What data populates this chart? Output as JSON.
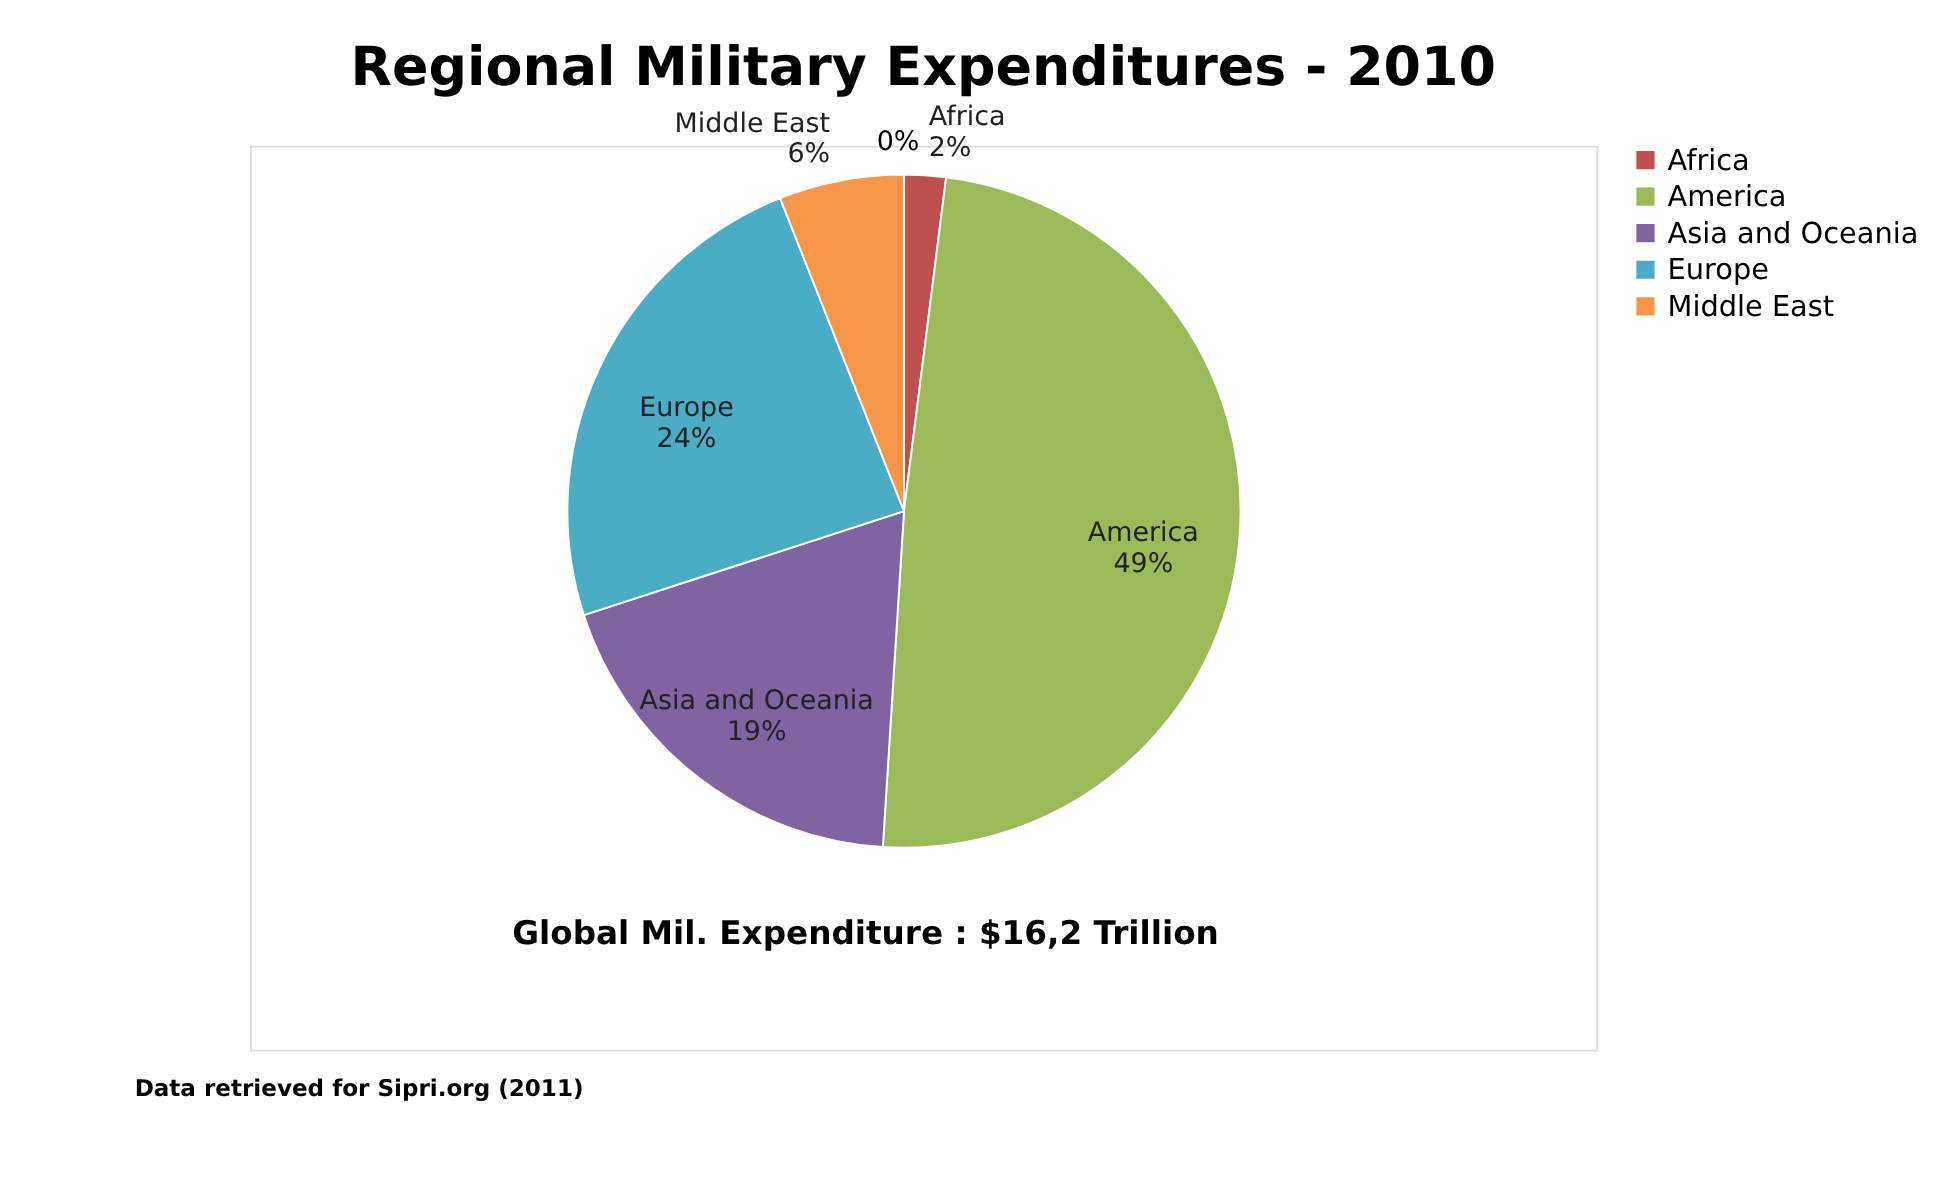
{
  "chart_data": {
    "type": "pie",
    "title": "Regional Military Expenditures - 2010",
    "categories": [
      "Africa",
      "America",
      "Asia and Oceania",
      "Europe",
      "Middle East"
    ],
    "values": [
      2,
      49,
      19,
      24,
      6
    ],
    "colors": [
      "#c0504d",
      "#9bbb59",
      "#8064a2",
      "#4bacc6",
      "#f79646"
    ],
    "value_labels": [
      "2%",
      "49%",
      "19%",
      "24%",
      "6%"
    ],
    "legend": "right",
    "annotations": [
      "0%",
      "Global Mil. Expenditure : $16,2 Trillion",
      "Data retrieved for Sipri.org (2011)"
    ]
  }
}
